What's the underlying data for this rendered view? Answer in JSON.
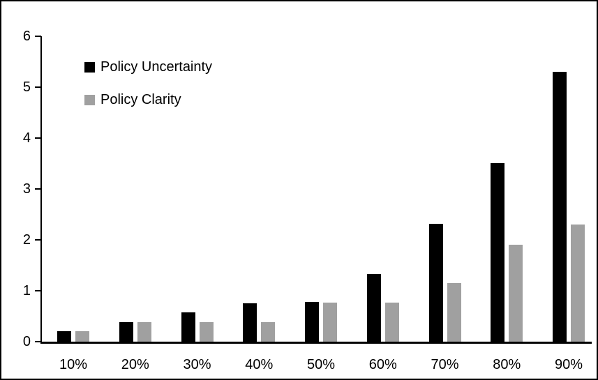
{
  "chart_data": {
    "type": "bar",
    "title": "",
    "xlabel": "",
    "ylabel": "",
    "categories": [
      "10%",
      "20%",
      "30%",
      "40%",
      "50%",
      "60%",
      "70%",
      "80%",
      "90%"
    ],
    "series": [
      {
        "name": "Policy Uncertainty",
        "color": "#000000",
        "values": [
          0.2,
          0.38,
          0.57,
          0.76,
          0.78,
          1.33,
          2.32,
          3.5,
          5.3
        ]
      },
      {
        "name": "Policy Clarity",
        "color": "#a0a0a0",
        "values": [
          0.2,
          0.38,
          0.38,
          0.38,
          0.77,
          0.77,
          1.15,
          1.9,
          2.3
        ]
      }
    ],
    "ylim": [
      0,
      6
    ],
    "yticks": [
      0,
      1,
      2,
      3,
      4,
      5,
      6
    ],
    "grid": false,
    "legend_position": "top-left",
    "frame_color": "#000000",
    "background_color": "#ffffff"
  }
}
